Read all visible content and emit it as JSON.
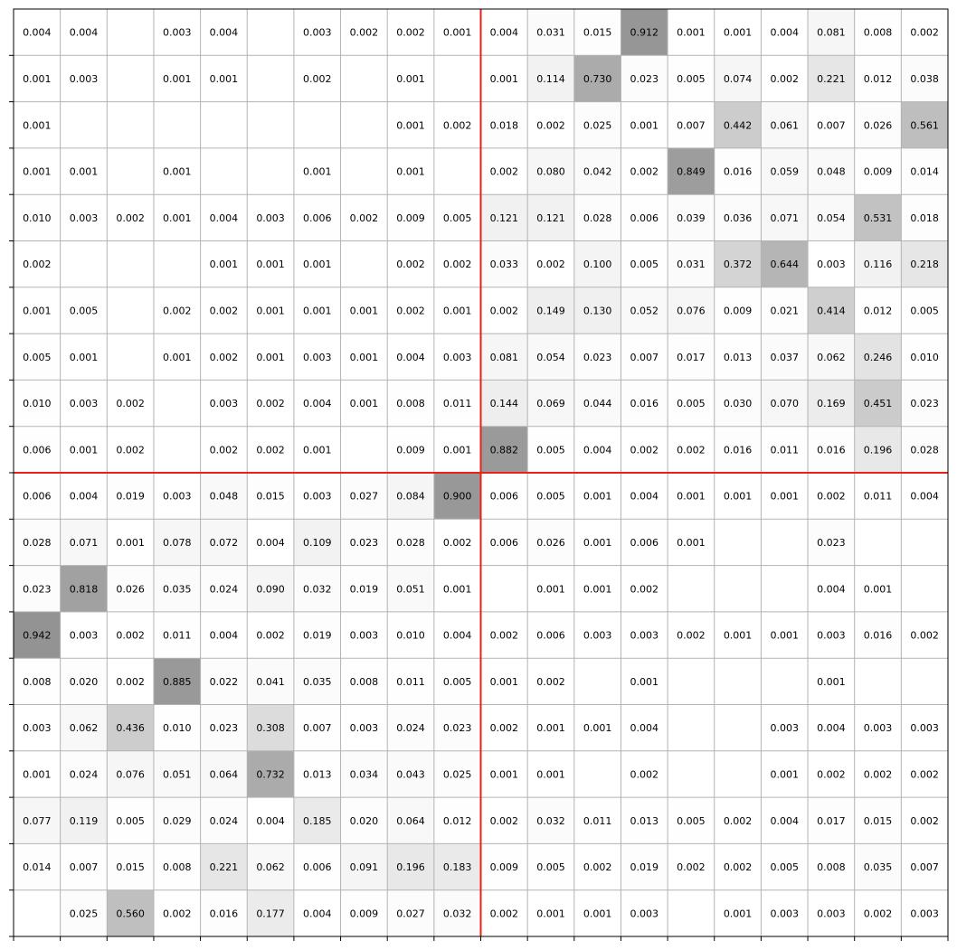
{
  "chart_data": {
    "type": "heatmap",
    "title": "",
    "xlabel": "",
    "ylabel": "",
    "rows": 20,
    "cols": 20,
    "divider_row": 10,
    "divider_col": 10,
    "colors": {
      "divider": "#e8211b",
      "grid": "#b3b3b3",
      "frame": "#000000",
      "cell_low": "#ffffff",
      "cell_high": "#8c8c8c"
    },
    "values": [
      [
        "0.004",
        "0.004",
        "",
        "0.003",
        "0.004",
        "",
        "0.003",
        "0.002",
        "0.002",
        "0.001",
        "0.004",
        "0.031",
        "0.015",
        "0.912",
        "0.001",
        "0.001",
        "0.004",
        "0.081",
        "0.008",
        "0.002"
      ],
      [
        "0.001",
        "0.003",
        "",
        "0.001",
        "0.001",
        "",
        "0.002",
        "",
        "0.001",
        "",
        "0.001",
        "0.114",
        "0.730",
        "0.023",
        "0.005",
        "0.074",
        "0.002",
        "0.221",
        "0.012",
        "0.038"
      ],
      [
        "0.001",
        "",
        "",
        "",
        "",
        "",
        "",
        "",
        "0.001",
        "0.002",
        "0.018",
        "0.002",
        "0.025",
        "0.001",
        "0.007",
        "0.442",
        "0.061",
        "0.007",
        "0.026",
        "0.561"
      ],
      [
        "0.001",
        "0.001",
        "",
        "0.001",
        "",
        "",
        "0.001",
        "",
        "0.001",
        "",
        "0.002",
        "0.080",
        "0.042",
        "0.002",
        "0.849",
        "0.016",
        "0.059",
        "0.048",
        "0.009",
        "0.014"
      ],
      [
        "0.010",
        "0.003",
        "0.002",
        "0.001",
        "0.004",
        "0.003",
        "0.006",
        "0.002",
        "0.009",
        "0.005",
        "0.121",
        "0.121",
        "0.028",
        "0.006",
        "0.039",
        "0.036",
        "0.071",
        "0.054",
        "0.531",
        "0.018"
      ],
      [
        "0.002",
        "",
        "",
        "",
        "0.001",
        "0.001",
        "0.001",
        "",
        "0.002",
        "0.002",
        "0.033",
        "0.002",
        "0.100",
        "0.005",
        "0.031",
        "0.372",
        "0.644",
        "0.003",
        "0.116",
        "0.218"
      ],
      [
        "0.001",
        "0.005",
        "",
        "0.002",
        "0.002",
        "0.001",
        "0.001",
        "0.001",
        "0.002",
        "0.001",
        "0.002",
        "0.149",
        "0.130",
        "0.052",
        "0.076",
        "0.009",
        "0.021",
        "0.414",
        "0.012",
        "0.005"
      ],
      [
        "0.005",
        "0.001",
        "",
        "0.001",
        "0.002",
        "0.001",
        "0.003",
        "0.001",
        "0.004",
        "0.003",
        "0.081",
        "0.054",
        "0.023",
        "0.007",
        "0.017",
        "0.013",
        "0.037",
        "0.062",
        "0.246",
        "0.010"
      ],
      [
        "0.010",
        "0.003",
        "0.002",
        "",
        "0.003",
        "0.002",
        "0.004",
        "0.001",
        "0.008",
        "0.011",
        "0.144",
        "0.069",
        "0.044",
        "0.016",
        "0.005",
        "0.030",
        "0.070",
        "0.169",
        "0.451",
        "0.023"
      ],
      [
        "0.006",
        "0.001",
        "0.002",
        "",
        "0.002",
        "0.002",
        "0.001",
        "",
        "0.009",
        "0.001",
        "0.882",
        "0.005",
        "0.004",
        "0.002",
        "0.002",
        "0.016",
        "0.011",
        "0.016",
        "0.196",
        "0.028"
      ],
      [
        "0.006",
        "0.004",
        "0.019",
        "0.003",
        "0.048",
        "0.015",
        "0.003",
        "0.027",
        "0.084",
        "0.900",
        "0.006",
        "0.005",
        "0.001",
        "0.004",
        "0.001",
        "0.001",
        "0.001",
        "0.002",
        "0.011",
        "0.004"
      ],
      [
        "0.028",
        "0.071",
        "0.001",
        "0.078",
        "0.072",
        "0.004",
        "0.109",
        "0.023",
        "0.028",
        "0.002",
        "0.006",
        "0.026",
        "0.001",
        "0.006",
        "0.001",
        "",
        "",
        "0.023",
        "",
        ""
      ],
      [
        "0.023",
        "0.818",
        "0.026",
        "0.035",
        "0.024",
        "0.090",
        "0.032",
        "0.019",
        "0.051",
        "0.001",
        "",
        "0.001",
        "0.001",
        "0.002",
        "",
        "",
        "",
        "0.004",
        "0.001",
        ""
      ],
      [
        "0.942",
        "0.003",
        "0.002",
        "0.011",
        "0.004",
        "0.002",
        "0.019",
        "0.003",
        "0.010",
        "0.004",
        "0.002",
        "0.006",
        "0.003",
        "0.003",
        "0.002",
        "0.001",
        "0.001",
        "0.003",
        "0.016",
        "0.002"
      ],
      [
        "0.008",
        "0.020",
        "0.002",
        "0.885",
        "0.022",
        "0.041",
        "0.035",
        "0.008",
        "0.011",
        "0.005",
        "0.001",
        "0.002",
        "",
        "0.001",
        "",
        "",
        "",
        "0.001",
        "",
        ""
      ],
      [
        "0.003",
        "0.062",
        "0.436",
        "0.010",
        "0.023",
        "0.308",
        "0.007",
        "0.003",
        "0.024",
        "0.023",
        "0.002",
        "0.001",
        "0.001",
        "0.004",
        "",
        "",
        "0.003",
        "0.004",
        "0.003",
        "0.003"
      ],
      [
        "0.001",
        "0.024",
        "0.076",
        "0.051",
        "0.064",
        "0.732",
        "0.013",
        "0.034",
        "0.043",
        "0.025",
        "0.001",
        "0.001",
        "",
        "0.002",
        "",
        "",
        "0.001",
        "0.002",
        "0.002",
        "0.002"
      ],
      [
        "0.077",
        "0.119",
        "0.005",
        "0.029",
        "0.024",
        "0.004",
        "0.185",
        "0.020",
        "0.064",
        "0.012",
        "0.002",
        "0.032",
        "0.011",
        "0.013",
        "0.005",
        "0.002",
        "0.004",
        "0.017",
        "0.015",
        "0.002"
      ],
      [
        "0.014",
        "0.007",
        "0.015",
        "0.008",
        "0.221",
        "0.062",
        "0.006",
        "0.091",
        "0.196",
        "0.183",
        "0.009",
        "0.005",
        "0.002",
        "0.019",
        "0.002",
        "0.002",
        "0.005",
        "0.008",
        "0.035",
        "0.007"
      ],
      [
        "",
        "0.025",
        "0.560",
        "0.002",
        "0.016",
        "0.177",
        "0.004",
        "0.009",
        "0.027",
        "0.032",
        "0.002",
        "0.001",
        "0.001",
        "0.003",
        "",
        "0.001",
        "0.003",
        "0.003",
        "0.002",
        "0.003"
      ]
    ]
  }
}
